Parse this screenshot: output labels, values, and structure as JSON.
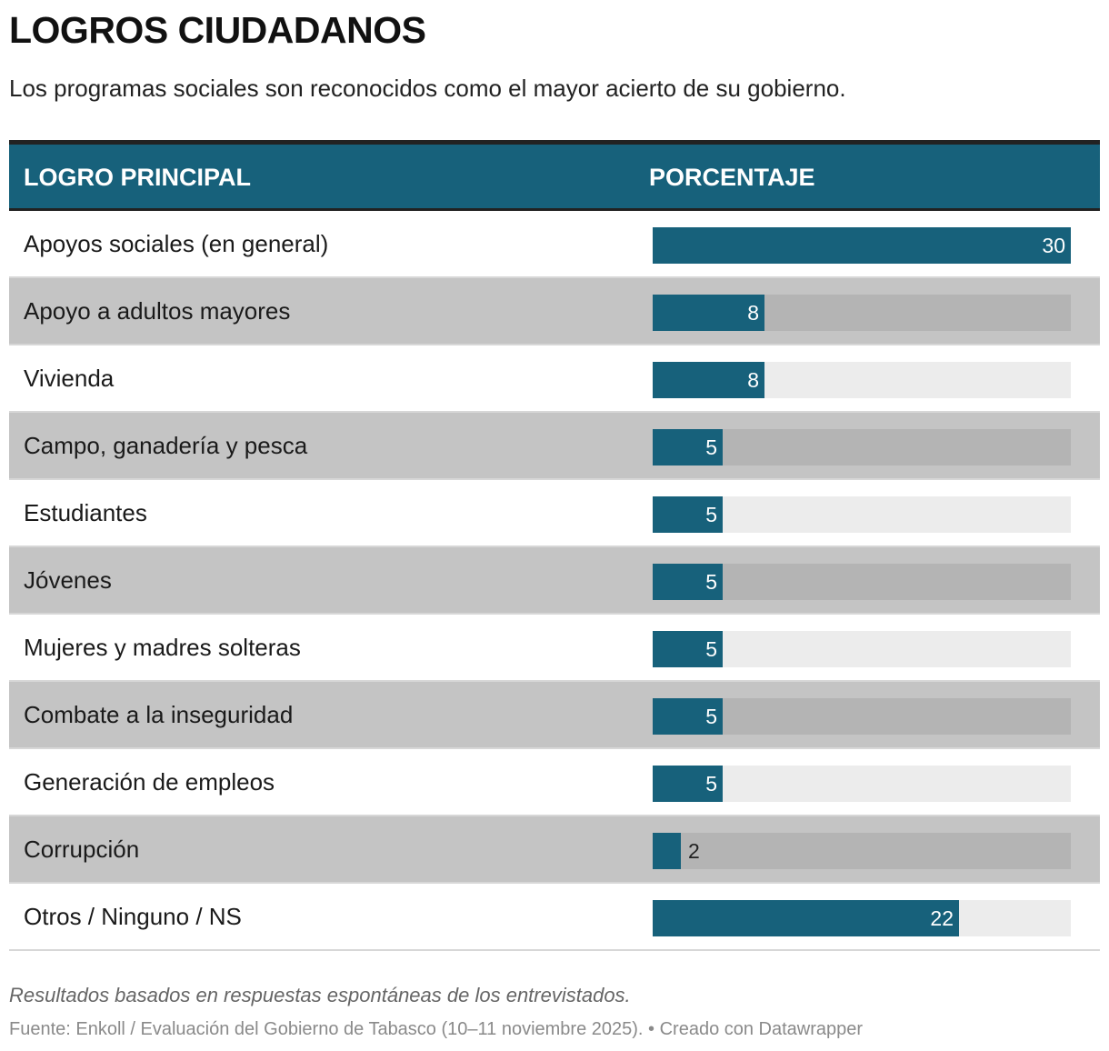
{
  "title": "LOGROS CIUDADANOS",
  "subtitle": "Los programas sociales son reconocidos como el mayor acierto de su gobierno.",
  "columns": [
    "LOGRO PRINCIPAL",
    "PORCENTAJE"
  ],
  "colors": {
    "bar": "#17617b",
    "header": "#17617b",
    "row_alt": "#c4c4c4",
    "track_light": "#ececec",
    "track_dark": "#b4b4b4"
  },
  "chart_data": {
    "type": "bar",
    "orientation": "horizontal",
    "categories": [
      "Apoyos sociales (en general)",
      "Apoyo a adultos mayores",
      "Vivienda",
      "Campo, ganadería y pesca",
      "Estudiantes",
      "Jóvenes",
      "Mujeres y madres solteras",
      "Combate a la inseguridad",
      "Generación de empleos",
      "Corrupción",
      "Otros / Ninguno / NS"
    ],
    "values": [
      30,
      8,
      8,
      5,
      5,
      5,
      5,
      5,
      5,
      2,
      22
    ],
    "xlim": [
      0,
      30
    ],
    "grid": false
  },
  "notes": "Resultados basados en respuestas espontáneas de los entrevistados.",
  "source": "Fuente: Enkoll / Evaluación del Gobierno de Tabasco (10–11 noviembre 2025). • Creado con Datawrapper"
}
